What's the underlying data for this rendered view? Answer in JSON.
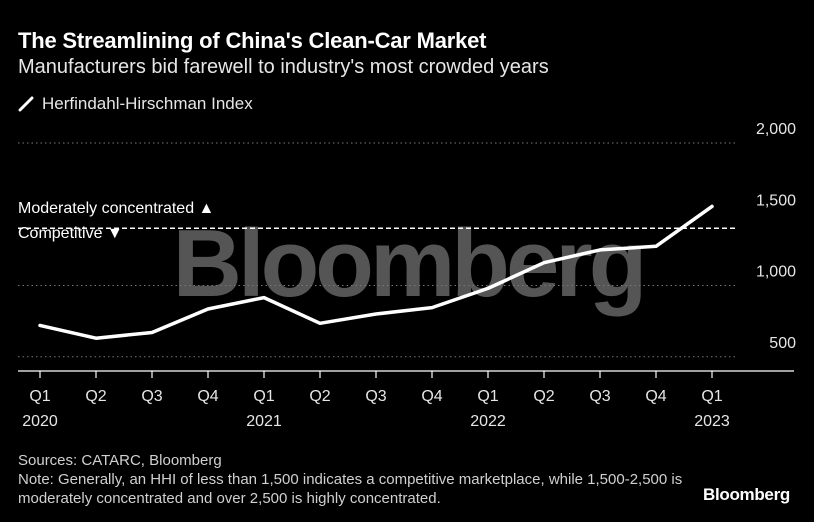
{
  "header": {
    "title": "The Streamlining of China's Clean-Car Market",
    "subtitle": "Manufacturers bid farewell to industry's most crowded years"
  },
  "legend": {
    "label": "Herfindahl-Hirschman Index"
  },
  "annotations": {
    "above": "Moderately concentrated ▲",
    "below": "Competitive ▼",
    "watermark": "Bloomberg"
  },
  "footer": {
    "source": "Sources: CATARC, Bloomberg",
    "note": "Note: Generally, an HHI of less than 1,500 indicates a competitive marketplace, while 1,500-2,500 is moderately concentrated and over 2,500 is highly concentrated.",
    "logo": "Bloomberg"
  },
  "colors": {
    "background": "#000000",
    "line": "#ffffff",
    "grid": "#777777",
    "watermark": "#555555"
  },
  "chart_data": {
    "type": "line",
    "categories": [
      "Q1",
      "Q2",
      "Q3",
      "Q4",
      "Q1",
      "Q2",
      "Q3",
      "Q4",
      "Q1",
      "Q2",
      "Q3",
      "Q4",
      "Q1"
    ],
    "year_labels": [
      {
        "index": 0,
        "label": "2020"
      },
      {
        "index": 4,
        "label": "2021"
      },
      {
        "index": 8,
        "label": "2022"
      },
      {
        "index": 12,
        "label": "2023"
      }
    ],
    "series": [
      {
        "name": "Herfindahl-Hirschman Index",
        "values": [
          720,
          630,
          670,
          835,
          915,
          735,
          800,
          845,
          980,
          1160,
          1250,
          1275,
          1555
        ]
      }
    ],
    "threshold": {
      "value": 1500,
      "style": "dashed"
    },
    "yticks": [
      {
        "value": 500,
        "label": "500"
      },
      {
        "value": 1000,
        "label": "1,000"
      },
      {
        "value": 1500,
        "label": "1,500"
      },
      {
        "value": 2000,
        "label": "2,000"
      }
    ],
    "ylim": [
      400,
      2000
    ],
    "grid": true,
    "y_axis_position": "right",
    "legend_position": "top-left"
  }
}
